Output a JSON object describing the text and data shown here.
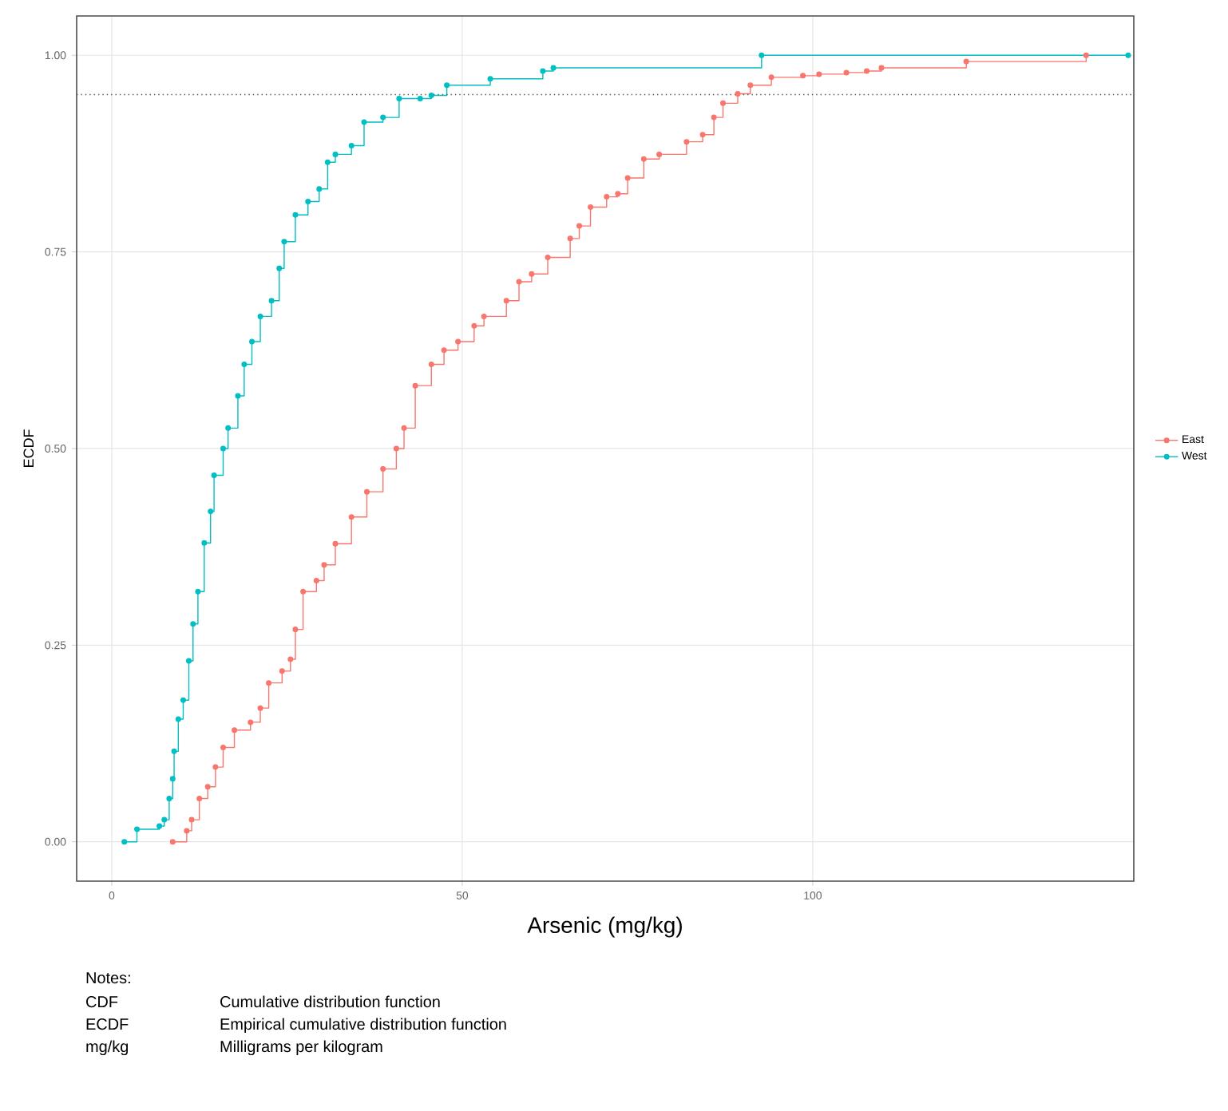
{
  "chart_data": {
    "type": "step",
    "xlabel": "Arsenic (mg/kg)",
    "ylabel": "ECDF",
    "xlim": [
      -5,
      145.8
    ],
    "ylim": [
      -0.05,
      1.05
    ],
    "xticks": [
      0,
      50,
      100
    ],
    "yticks": [
      {
        "value": 0,
        "label": "0.00"
      },
      {
        "value": 0.25,
        "label": "0.25"
      },
      {
        "value": 0.5,
        "label": "0.50"
      },
      {
        "value": 0.75,
        "label": "0.75"
      },
      {
        "value": 1,
        "label": "1.00"
      }
    ],
    "grid": true,
    "legend": "right",
    "marker": "circle",
    "line_style": "solid",
    "ref_lines": [
      {
        "axis": "y",
        "value": 0.95,
        "color": "#555555",
        "line_style": "dotted"
      }
    ],
    "series": [
      {
        "name": "East",
        "color": "#f8766d",
        "x": [
          8.7,
          10.7,
          11.4,
          12.5,
          13.7,
          14.8,
          15.9,
          17.5,
          19.8,
          21.2,
          22.4,
          24.3,
          25.5,
          26.2,
          27.3,
          29.2,
          30.3,
          31.9,
          34.2,
          36.4,
          38.7,
          40.6,
          41.7,
          43.3,
          45.6,
          47.4,
          49.4,
          51.7,
          53.1,
          56.3,
          58.1,
          59.9,
          62.2,
          65.4,
          66.7,
          68.3,
          70.6,
          72.2,
          73.6,
          75.9,
          78.1,
          82,
          84.3,
          85.9,
          87.2,
          89.3,
          91.1,
          94.1,
          98.6,
          100.9,
          104.8,
          107.7,
          109.8,
          121.9,
          139
        ],
        "values": [
          0,
          0.014,
          0.028,
          0.055,
          0.07,
          0.095,
          0.12,
          0.142,
          0.152,
          0.17,
          0.202,
          0.217,
          0.232,
          0.27,
          0.318,
          0.332,
          0.352,
          0.379,
          0.413,
          0.445,
          0.474,
          0.5,
          0.526,
          0.58,
          0.607,
          0.625,
          0.636,
          0.656,
          0.668,
          0.688,
          0.712,
          0.722,
          0.743,
          0.767,
          0.783,
          0.807,
          0.82,
          0.824,
          0.844,
          0.868,
          0.874,
          0.89,
          0.899,
          0.921,
          0.939,
          0.951,
          0.962,
          0.972,
          0.974,
          0.976,
          0.978,
          0.98,
          0.984,
          0.992,
          1
        ]
      },
      {
        "name": "West",
        "color": "#00bfc4",
        "x": [
          1.8,
          3.6,
          6.8,
          7.5,
          8.2,
          8.7,
          8.9,
          9.5,
          10.2,
          11,
          11.6,
          12.3,
          13.2,
          14.1,
          14.6,
          15.9,
          16.6,
          18,
          18.9,
          20,
          21.2,
          22.8,
          23.9,
          24.6,
          26.2,
          28,
          29.6,
          30.8,
          31.9,
          34.2,
          36,
          38.7,
          41,
          44,
          45.6,
          47.8,
          54,
          61.5,
          63,
          92.7,
          145
        ],
        "values": [
          0,
          0.016,
          0.02,
          0.028,
          0.055,
          0.08,
          0.115,
          0.156,
          0.18,
          0.23,
          0.277,
          0.318,
          0.38,
          0.42,
          0.466,
          0.5,
          0.526,
          0.567,
          0.607,
          0.636,
          0.668,
          0.688,
          0.729,
          0.763,
          0.797,
          0.814,
          0.83,
          0.864,
          0.874,
          0.885,
          0.915,
          0.921,
          0.945,
          0.945,
          0.949,
          0.962,
          0.97,
          0.98,
          0.984,
          1,
          1
        ]
      }
    ],
    "annotations": [
      "Notes:",
      "CDF",
      "Cumulative distribution function",
      "ECDF",
      "Empirical cumulative distribution function",
      "mg/kg",
      "Milligrams per kilogram"
    ]
  }
}
